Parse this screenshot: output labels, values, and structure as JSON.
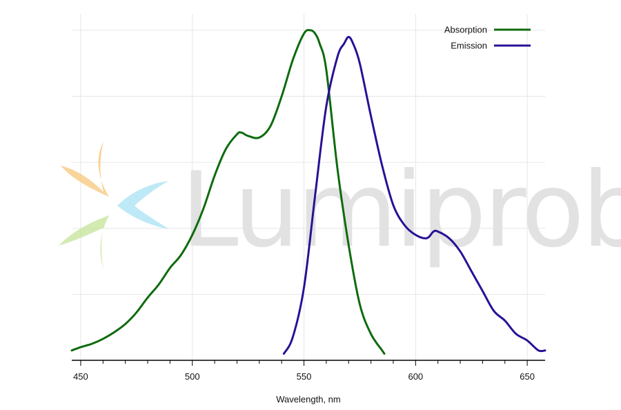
{
  "chart_data": {
    "type": "line",
    "title": "",
    "xlabel": "Wavelength, nm",
    "ylabel": "",
    "xlim": [
      446,
      658
    ],
    "ylim": [
      0,
      1.05
    ],
    "x_ticks": [
      450,
      500,
      550,
      600,
      650
    ],
    "x_minor_step": 10,
    "y_gridlines": [
      0.2,
      0.4,
      0.6,
      0.8,
      1.0
    ],
    "grid": true,
    "legend_position": "top-right",
    "series": [
      {
        "name": "Absorption",
        "color": "#0d6b0d",
        "x": [
          446,
          450,
          455,
          460,
          465,
          470,
          475,
          480,
          485,
          490,
          495,
          500,
          505,
          510,
          515,
          520,
          522,
          525,
          530,
          535,
          540,
          545,
          550,
          553,
          555,
          557,
          560,
          565,
          570,
          575,
          580,
          585,
          586
        ],
        "y": [
          0.03,
          0.04,
          0.05,
          0.065,
          0.085,
          0.11,
          0.145,
          0.19,
          0.23,
          0.28,
          0.32,
          0.38,
          0.46,
          0.56,
          0.64,
          0.685,
          0.69,
          0.68,
          0.675,
          0.71,
          0.8,
          0.91,
          0.99,
          1.0,
          0.99,
          0.96,
          0.88,
          0.58,
          0.35,
          0.17,
          0.08,
          0.03,
          0.02
        ]
      },
      {
        "name": "Emission",
        "color": "#2a0f96",
        "x": [
          541,
          545,
          550,
          555,
          560,
          565,
          568,
          570,
          572,
          575,
          580,
          585,
          590,
          595,
          600,
          605,
          608,
          610,
          615,
          620,
          625,
          630,
          635,
          640,
          645,
          650,
          655,
          658
        ],
        "y": [
          0.02,
          0.07,
          0.22,
          0.5,
          0.77,
          0.92,
          0.96,
          0.98,
          0.96,
          0.9,
          0.74,
          0.59,
          0.47,
          0.41,
          0.38,
          0.37,
          0.39,
          0.39,
          0.37,
          0.33,
          0.27,
          0.21,
          0.15,
          0.12,
          0.08,
          0.06,
          0.03,
          0.03
        ]
      }
    ]
  },
  "watermark": {
    "text": "Lumiprobe",
    "colors": [
      "#f7c77a",
      "#a9e2f3",
      "#c5e59a"
    ]
  }
}
